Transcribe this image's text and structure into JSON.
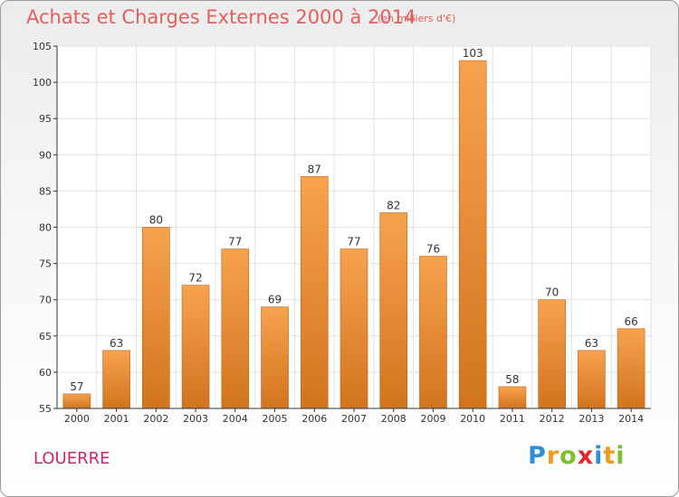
{
  "header": {
    "title": "Achats et Charges Externes 2000 à 2014",
    "subtitle": "(en milliers d'€)"
  },
  "footer": {
    "commune": "LOUERRE",
    "logo": [
      {
        "char": "P",
        "color": "#2e8fd6"
      },
      {
        "char": "r",
        "color": "#f39a1e"
      },
      {
        "char": "o",
        "color": "#7cbf2f"
      },
      {
        "char": "x",
        "color": "#e3262a"
      },
      {
        "char": "i",
        "color": "#2e8fd6"
      },
      {
        "char": "t",
        "color": "#f39a1e"
      },
      {
        "char": "i",
        "color": "#7cbf2f"
      }
    ]
  },
  "colors": {
    "bar_top": "#f7a24f",
    "bar_bottom": "#d2741e",
    "bar_edge": "#b8621a",
    "axis": "#333333",
    "grid": "#e2e2e2"
  },
  "chart_data": {
    "type": "bar",
    "title": "Achats et Charges Externes 2000 à 2014",
    "subtitle": "(en milliers d'€)",
    "categories": [
      "2000",
      "2001",
      "2002",
      "2003",
      "2004",
      "2005",
      "2006",
      "2007",
      "2008",
      "2009",
      "2010",
      "2011",
      "2012",
      "2013",
      "2014"
    ],
    "values": [
      57,
      63,
      80,
      72,
      77,
      69,
      87,
      77,
      82,
      76,
      103,
      58,
      70,
      63,
      66
    ],
    "ylim": [
      55,
      105
    ],
    "yticks": [
      55,
      60,
      65,
      70,
      75,
      80,
      85,
      90,
      95,
      100,
      105
    ],
    "grid": true,
    "data_labels": true
  }
}
